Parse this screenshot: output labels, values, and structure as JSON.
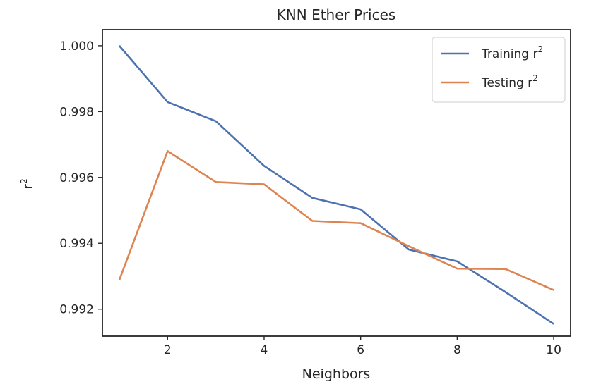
{
  "chart_data": {
    "type": "line",
    "title": "KNN Ether Prices",
    "xlabel": "Neighbors",
    "ylabel": "r",
    "ylabel_superscript": "2",
    "xlim": [
      0.65,
      10.35
    ],
    "ylim": [
      0.99118,
      1.00049
    ],
    "xticks": [
      2,
      4,
      6,
      8,
      10
    ],
    "yticks": [
      0.992,
      0.994,
      0.996,
      0.998,
      1.0
    ],
    "ytick_labels": [
      "0.992",
      "0.994",
      "0.996",
      "0.998",
      "1.000"
    ],
    "grid": false,
    "legend_position": "top-right",
    "x": [
      1,
      2,
      3,
      4,
      5,
      6,
      7,
      8,
      9,
      10
    ],
    "series": [
      {
        "name": "Training r",
        "name_superscript": "2",
        "color": "#4c72b0",
        "values": [
          1.0,
          0.99829,
          0.99771,
          0.99635,
          0.99538,
          0.99503,
          0.99381,
          0.99345,
          0.99252,
          0.99155
        ]
      },
      {
        "name": "Testing r",
        "name_superscript": "2",
        "color": "#dd8452",
        "values": [
          0.99288,
          0.9968,
          0.99586,
          0.99579,
          0.99468,
          0.99461,
          0.99391,
          0.99323,
          0.99322,
          0.99258
        ]
      }
    ]
  }
}
